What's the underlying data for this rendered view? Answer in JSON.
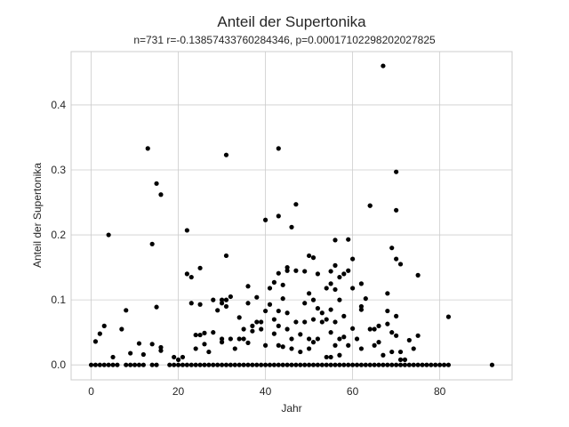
{
  "chart_data": {
    "type": "scatter",
    "title": "Anteil der Supertonika",
    "subtitle": "n=731 r=-0.13857433760284346, p=0.00017102298202027825",
    "xlabel": "Jahr",
    "ylabel": "Anteil der Supertonika",
    "xlim": [
      -4.6,
      96.6
    ],
    "ylim": [
      -0.023,
      0.482
    ],
    "xticks": [
      0,
      20,
      40,
      60,
      80
    ],
    "yticks": [
      0.0,
      0.1,
      0.2,
      0.3,
      0.4
    ],
    "xtick_labels": [
      "0",
      "20",
      "40",
      "60",
      "80"
    ],
    "ytick_labels": [
      "0.0",
      "0.1",
      "0.2",
      "0.3",
      "0.4"
    ],
    "grid": true,
    "point_color": "#000000",
    "series": [
      {
        "points": [
          [
            1,
            0.036
          ],
          [
            2,
            0.048
          ],
          [
            3,
            0.06
          ],
          [
            4,
            0.2
          ],
          [
            5,
            0.012
          ],
          [
            7,
            0.055
          ],
          [
            8,
            0.084
          ],
          [
            9,
            0.018
          ],
          [
            11,
            0.033
          ],
          [
            12,
            0.016
          ],
          [
            13,
            0.333
          ],
          [
            14,
            0.186
          ],
          [
            14,
            0.032
          ],
          [
            15,
            0.279
          ],
          [
            15,
            0.089
          ],
          [
            16,
            0.262
          ],
          [
            16,
            0.027
          ],
          [
            16,
            0.022
          ],
          [
            19,
            0.012
          ],
          [
            20,
            0.008
          ],
          [
            21,
            0.012
          ],
          [
            22,
            0.207
          ],
          [
            22,
            0.14
          ],
          [
            23,
            0.135
          ],
          [
            23,
            0.095
          ],
          [
            24,
            0.046
          ],
          [
            24,
            0.025
          ],
          [
            25,
            0.149
          ],
          [
            25,
            0.093
          ],
          [
            25,
            0.046
          ],
          [
            26,
            0.032
          ],
          [
            26,
            0.049
          ],
          [
            27,
            0.02
          ],
          [
            28,
            0.1
          ],
          [
            28,
            0.05
          ],
          [
            29,
            0.084
          ],
          [
            30,
            0.095
          ],
          [
            30,
            0.1
          ],
          [
            30,
            0.04
          ],
          [
            30,
            0.035
          ],
          [
            31,
            0.323
          ],
          [
            31,
            0.168
          ],
          [
            31,
            0.09
          ],
          [
            31,
            0.1
          ],
          [
            32,
            0.105
          ],
          [
            32,
            0.04
          ],
          [
            33,
            0.025
          ],
          [
            34,
            0.04
          ],
          [
            34,
            0.073
          ],
          [
            35,
            0.04
          ],
          [
            35,
            0.055
          ],
          [
            36,
            0.121
          ],
          [
            36,
            0.034
          ],
          [
            36,
            0.095
          ],
          [
            37,
            0.052
          ],
          [
            37,
            0.06
          ],
          [
            38,
            0.066
          ],
          [
            38,
            0.104
          ],
          [
            39,
            0.055
          ],
          [
            39,
            0.066
          ],
          [
            40,
            0.223
          ],
          [
            40,
            0.083
          ],
          [
            40,
            0.03
          ],
          [
            41,
            0.118
          ],
          [
            41,
            0.093
          ],
          [
            42,
            0.127
          ],
          [
            42,
            0.07
          ],
          [
            42,
            0.048
          ],
          [
            43,
            0.333
          ],
          [
            43,
            0.229
          ],
          [
            43,
            0.141
          ],
          [
            43,
            0.083
          ],
          [
            43,
            0.06
          ],
          [
            43,
            0.03
          ],
          [
            44,
            0.123
          ],
          [
            44,
            0.102
          ],
          [
            44,
            0.028
          ],
          [
            45,
            0.15
          ],
          [
            45,
            0.145
          ],
          [
            45,
            0.08
          ],
          [
            45,
            0.055
          ],
          [
            46,
            0.212
          ],
          [
            46,
            0.04
          ],
          [
            46,
            0.025
          ],
          [
            47,
            0.247
          ],
          [
            47,
            0.145
          ],
          [
            47,
            0.066
          ],
          [
            48,
            0.047
          ],
          [
            48,
            0.02
          ],
          [
            49,
            0.144
          ],
          [
            49,
            0.095
          ],
          [
            49,
            0.066
          ],
          [
            50,
            0.168
          ],
          [
            50,
            0.11
          ],
          [
            50,
            0.04
          ],
          [
            50,
            0.025
          ],
          [
            51,
            0.165
          ],
          [
            51,
            0.1
          ],
          [
            51,
            0.07
          ],
          [
            51,
            0.035
          ],
          [
            52,
            0.14
          ],
          [
            52,
            0.087
          ],
          [
            52,
            0.04
          ],
          [
            53,
            0.08
          ],
          [
            53,
            0.066
          ],
          [
            54,
            0.118
          ],
          [
            54,
            0.07
          ],
          [
            54,
            0.012
          ],
          [
            55,
            0.144
          ],
          [
            55,
            0.125
          ],
          [
            55,
            0.085
          ],
          [
            55,
            0.05
          ],
          [
            55,
            0.012
          ],
          [
            56,
            0.192
          ],
          [
            56,
            0.153
          ],
          [
            56,
            0.116
          ],
          [
            56,
            0.066
          ],
          [
            56,
            0.03
          ],
          [
            57,
            0.135
          ],
          [
            57,
            0.1
          ],
          [
            57,
            0.04
          ],
          [
            57,
            0.015
          ],
          [
            58,
            0.14
          ],
          [
            58,
            0.075
          ],
          [
            58,
            0.043
          ],
          [
            59,
            0.193
          ],
          [
            59,
            0.145
          ],
          [
            59,
            0.03
          ],
          [
            60,
            0.163
          ],
          [
            60,
            0.118
          ],
          [
            60,
            0.056
          ],
          [
            61,
            0.04
          ],
          [
            62,
            0.125
          ],
          [
            62,
            0.09
          ],
          [
            62,
            0.085
          ],
          [
            62,
            0.025
          ],
          [
            63,
            0.102
          ],
          [
            64,
            0.245
          ],
          [
            64,
            0.245
          ],
          [
            64,
            0.055
          ],
          [
            65,
            0.055
          ],
          [
            65,
            0.03
          ],
          [
            66,
            0.06
          ],
          [
            66,
            0.035
          ],
          [
            67,
            0.46
          ],
          [
            67,
            0.015
          ],
          [
            68,
            0.11
          ],
          [
            68,
            0.083
          ],
          [
            68,
            0.063
          ],
          [
            69,
            0.18
          ],
          [
            69,
            0.05
          ],
          [
            69,
            0.02
          ],
          [
            70,
            0.297
          ],
          [
            70,
            0.238
          ],
          [
            70,
            0.163
          ],
          [
            70,
            0.075
          ],
          [
            70,
            0.045
          ],
          [
            71,
            0.155
          ],
          [
            71,
            0.02
          ],
          [
            71,
            0.008
          ],
          [
            72,
            0.008
          ],
          [
            73,
            0.038
          ],
          [
            74,
            0.025
          ],
          [
            75,
            0.138
          ],
          [
            75,
            0.045
          ],
          [
            82,
            0.074
          ],
          [
            92,
            0.0
          ],
          [
            0,
            0.0
          ],
          [
            1,
            0.0
          ],
          [
            2,
            0.0
          ],
          [
            3,
            0.0
          ],
          [
            4,
            0.0
          ],
          [
            5,
            0.0
          ],
          [
            6,
            0.0
          ],
          [
            8,
            0.0
          ],
          [
            9,
            0.0
          ],
          [
            10,
            0.0
          ],
          [
            11,
            0.0
          ],
          [
            12,
            0.0
          ],
          [
            14,
            0.0
          ],
          [
            15,
            0.0
          ],
          [
            18,
            0.0
          ],
          [
            19,
            0.0
          ],
          [
            20,
            0.0
          ],
          [
            21,
            0.0
          ],
          [
            22,
            0.0
          ],
          [
            23,
            0.0
          ],
          [
            24,
            0.0
          ],
          [
            25,
            0.0
          ],
          [
            26,
            0.0
          ],
          [
            27,
            0.0
          ],
          [
            28,
            0.0
          ],
          [
            29,
            0.0
          ],
          [
            30,
            0.0
          ],
          [
            31,
            0.0
          ],
          [
            32,
            0.0
          ],
          [
            33,
            0.0
          ],
          [
            34,
            0.0
          ],
          [
            35,
            0.0
          ],
          [
            36,
            0.0
          ],
          [
            37,
            0.0
          ],
          [
            38,
            0.0
          ],
          [
            39,
            0.0
          ],
          [
            40,
            0.0
          ],
          [
            41,
            0.0
          ],
          [
            42,
            0.0
          ],
          [
            43,
            0.0
          ],
          [
            44,
            0.0
          ],
          [
            45,
            0.0
          ],
          [
            46,
            0.0
          ],
          [
            47,
            0.0
          ],
          [
            48,
            0.0
          ],
          [
            49,
            0.0
          ],
          [
            50,
            0.0
          ],
          [
            51,
            0.0
          ],
          [
            52,
            0.0
          ],
          [
            53,
            0.0
          ],
          [
            54,
            0.0
          ],
          [
            55,
            0.0
          ],
          [
            56,
            0.0
          ],
          [
            57,
            0.0
          ],
          [
            58,
            0.0
          ],
          [
            59,
            0.0
          ],
          [
            60,
            0.0
          ],
          [
            61,
            0.0
          ],
          [
            62,
            0.0
          ],
          [
            63,
            0.0
          ],
          [
            64,
            0.0
          ],
          [
            65,
            0.0
          ],
          [
            66,
            0.0
          ],
          [
            67,
            0.0
          ],
          [
            68,
            0.0
          ],
          [
            69,
            0.0
          ],
          [
            70,
            0.0
          ],
          [
            71,
            0.0
          ],
          [
            72,
            0.0
          ],
          [
            73,
            0.0
          ],
          [
            74,
            0.0
          ],
          [
            75,
            0.0
          ],
          [
            76,
            0.0
          ],
          [
            77,
            0.0
          ],
          [
            78,
            0.0
          ],
          [
            79,
            0.0
          ],
          [
            80,
            0.0
          ],
          [
            81,
            0.0
          ],
          [
            82,
            0.0
          ]
        ]
      }
    ]
  }
}
